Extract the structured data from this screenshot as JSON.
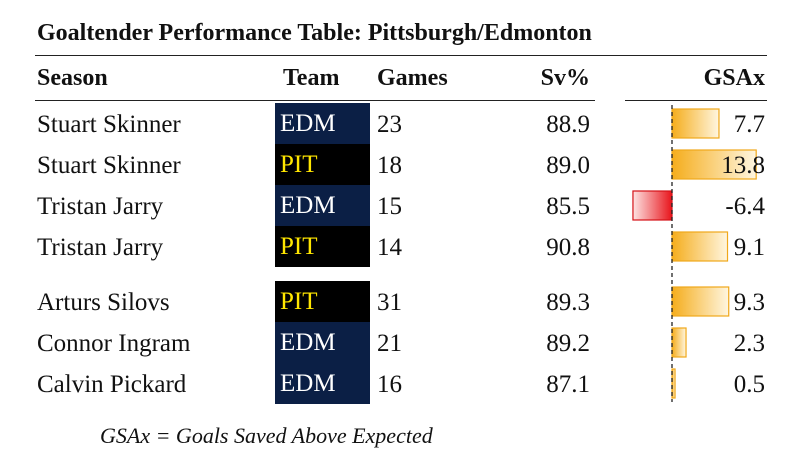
{
  "header": {
    "title": "Goaltender Performance Table: Pittsburgh/Edmonton"
  },
  "table": {
    "columns": [
      "Season",
      "Team",
      "Games",
      "Sv%",
      "GSAx"
    ],
    "groups": [
      {
        "rows": [
          {
            "name": "Stuart Skinner",
            "team": "EDM",
            "team_bg": "#0b1f45",
            "team_fg": "#ffffff",
            "games": "23",
            "sv": "88.9",
            "gsax": 7.7
          },
          {
            "name": "Stuart Skinner",
            "team": "PIT",
            "team_bg": "#000000",
            "team_fg": "#ffe600",
            "games": "18",
            "sv": "89.0",
            "gsax": 13.8
          },
          {
            "name": "Tristan Jarry",
            "team": "EDM",
            "team_bg": "#0b1f45",
            "team_fg": "#ffffff",
            "games": "15",
            "sv": "85.5",
            "gsax": -6.4
          },
          {
            "name": "Tristan Jarry",
            "team": "PIT",
            "team_bg": "#000000",
            "team_fg": "#ffe600",
            "games": "14",
            "sv": "90.8",
            "gsax": 9.1
          }
        ]
      },
      {
        "rows": [
          {
            "name": "Arturs Silovs",
            "team": "PIT",
            "team_bg": "#000000",
            "team_fg": "#ffe600",
            "games": "31",
            "sv": "89.3",
            "gsax": 9.3
          },
          {
            "name": "Connor Ingram",
            "team": "EDM",
            "team_bg": "#0b1f45",
            "team_fg": "#ffffff",
            "games": "21",
            "sv": "89.2",
            "gsax": 2.3
          },
          {
            "name": "Calvin Pickard",
            "team": "EDM",
            "team_bg": "#0b1f45",
            "team_fg": "#ffffff",
            "games": "16",
            "sv": "87.1",
            "gsax": 0.5
          }
        ]
      }
    ]
  },
  "footnote": "GSAx = Goals Saved Above Expected"
}
